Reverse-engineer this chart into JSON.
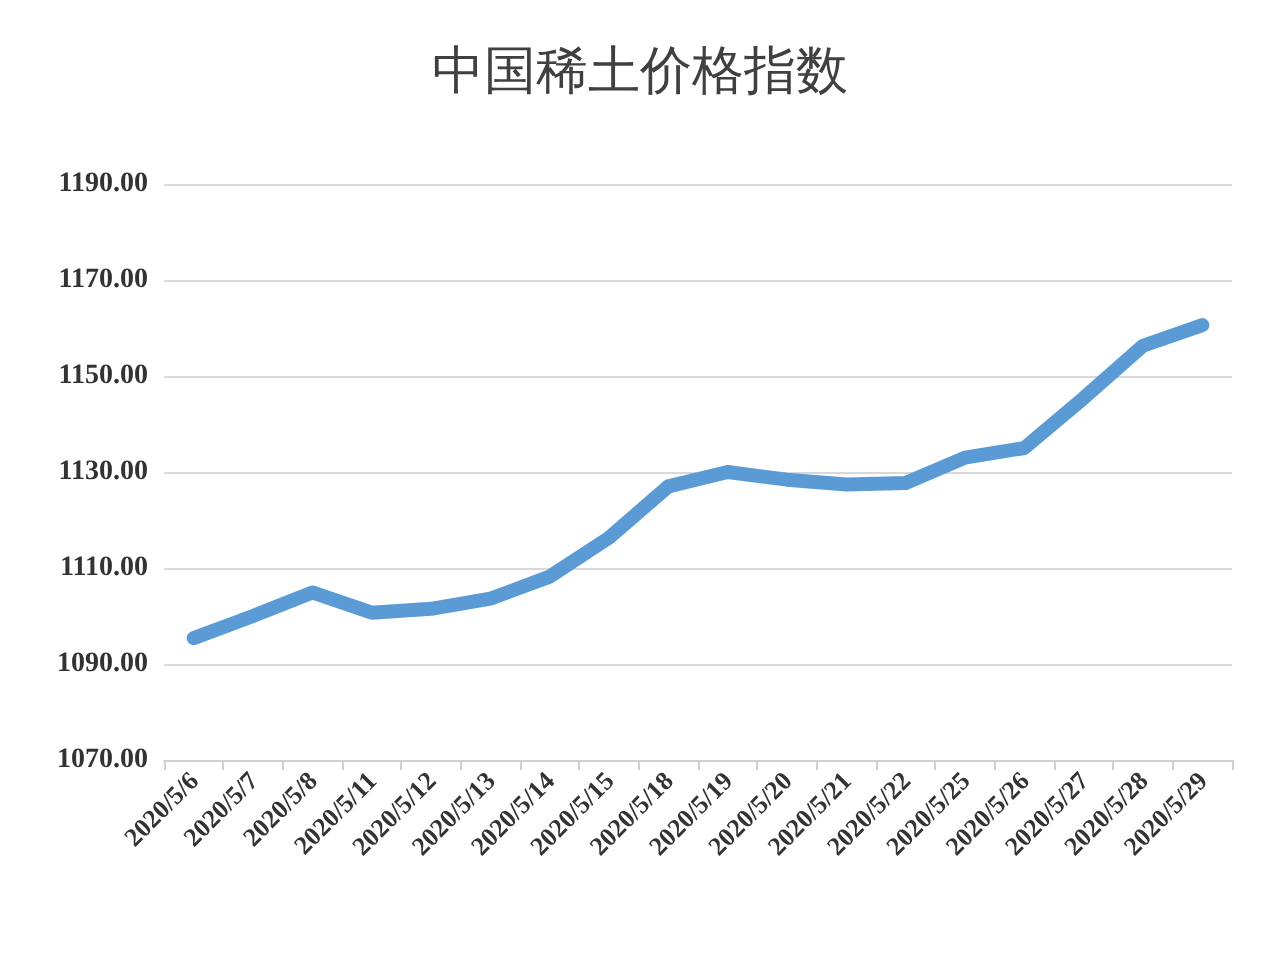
{
  "chart_data": {
    "type": "line",
    "title": "中国稀土价格指数",
    "categories": [
      "2020/5/6",
      "2020/5/7",
      "2020/5/8",
      "2020/5/11",
      "2020/5/12",
      "2020/5/13",
      "2020/5/14",
      "2020/5/15",
      "2020/5/18",
      "2020/5/19",
      "2020/5/20",
      "2020/5/21",
      "2020/5/22",
      "2020/5/25",
      "2020/5/26",
      "2020/5/27",
      "2020/5/28",
      "2020/5/29"
    ],
    "series": [
      {
        "color": "#5b9bd5",
        "values": [
          1095.4,
          1100,
          1104.9,
          1100.7,
          1101.5,
          1103.6,
          1108.2,
          1116.3,
          1127,
          1130,
          1128.4,
          1127.4,
          1127.7,
          1133,
          1135,
          1145.4,
          1156.3,
          1160.6
        ]
      }
    ],
    "ylim": [
      1070,
      1190
    ],
    "yticks": [
      {
        "value": 1070,
        "label": "1070.00"
      },
      {
        "value": 1090,
        "label": "1090.00"
      },
      {
        "value": 1110,
        "label": "1110.00"
      },
      {
        "value": 1130,
        "label": "1130.00"
      },
      {
        "value": 1150,
        "label": "1150.00"
      },
      {
        "value": 1170,
        "label": "1170.00"
      },
      {
        "value": 1190,
        "label": "1190.00"
      }
    ],
    "grid": "y",
    "line_style": "solid"
  }
}
